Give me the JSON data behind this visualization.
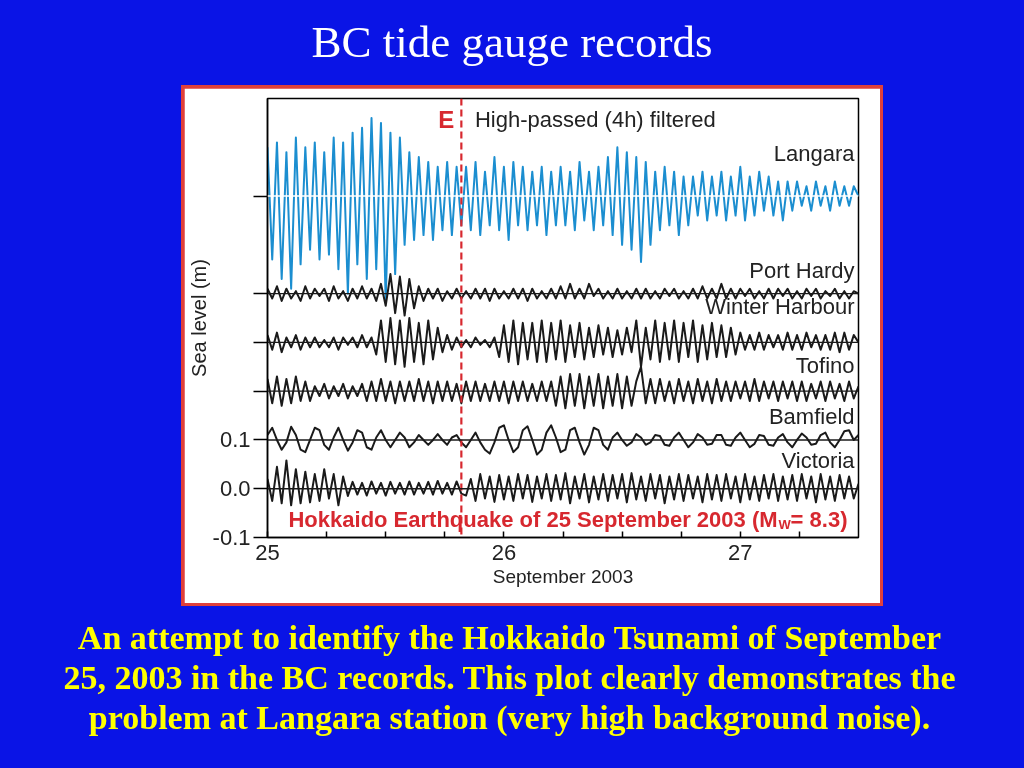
{
  "chart_data": {
    "type": "line",
    "title": "BC tide gauge records",
    "xlabel": "September 2003",
    "ylabel": "Sea level (m)",
    "annotations": [
      "High-passed (4h) filtered",
      "Hokkaido Earthquake of 25 September 2003 (M$_{W}$= 8.3)",
      "An attempt to identify the Hokkaido Tsunami of September 25, 2003 in the BC records. This plot clearly demonstrates the problem at Langara station (very high background noise)."
    ],
    "xlim": [
      25,
      27.5
    ],
    "xticks": [
      25,
      {
        "value": 25.25,
        "label": null
      },
      {
        "value": 25.5,
        "label": null
      },
      {
        "value": 25.75,
        "label": null
      },
      26,
      {
        "value": 26.25,
        "label": null
      },
      {
        "value": 26.5,
        "label": null
      },
      {
        "value": 26.75,
        "label": null
      },
      27,
      {
        "value": 27.25,
        "label": null
      }
    ],
    "ylim": [
      -0.1,
      0.8
    ],
    "yticks": [
      -0.1,
      {
        "value": 0,
        "label": "0.0"
      },
      0.1,
      {
        "value": 0.2,
        "label": null
      },
      {
        "value": 0.3,
        "label": null
      },
      {
        "value": 0.4,
        "label": null
      },
      {
        "value": 0.6,
        "label": null
      }
    ],
    "x": [
      25,
      25.02,
      25.04,
      25.06,
      25.08,
      25.1,
      25.12,
      25.14,
      25.16,
      25.18,
      25.2,
      25.22,
      25.24,
      25.26,
      25.28,
      25.3,
      25.32,
      25.34,
      25.36,
      25.38,
      25.4,
      25.42,
      25.44,
      25.46,
      25.48,
      25.5,
      25.52,
      25.54,
      25.56,
      25.58,
      25.6,
      25.62,
      25.64,
      25.66,
      25.68,
      25.7,
      25.72,
      25.74,
      25.76,
      25.78,
      25.8,
      25.82,
      25.84,
      25.86,
      25.88,
      25.9,
      25.92,
      25.94,
      25.96,
      25.98,
      26,
      26.02,
      26.04,
      26.06,
      26.08,
      26.1,
      26.12,
      26.14,
      26.16,
      26.18,
      26.2,
      26.22,
      26.24,
      26.26,
      26.28,
      26.3,
      26.32,
      26.34,
      26.36,
      26.38,
      26.4,
      26.42,
      26.44,
      26.46,
      26.48,
      26.5,
      26.52,
      26.54,
      26.56,
      26.58,
      26.6,
      26.62,
      26.64,
      26.66,
      26.68,
      26.7,
      26.72,
      26.74,
      26.76,
      26.78,
      26.8,
      26.82,
      26.84,
      26.86,
      26.88,
      26.9,
      26.92,
      26.94,
      26.96,
      26.98,
      27,
      27.02,
      27.04,
      27.06,
      27.08,
      27.1,
      27.12,
      27.14,
      27.16,
      27.18,
      27.2,
      27.22,
      27.24,
      27.26,
      27.28,
      27.3,
      27.32,
      27.34,
      27.36,
      27.38,
      27.4,
      27.42,
      27.44,
      27.46,
      27.48,
      27.5
    ],
    "series": [
      {
        "name": "Langara",
        "color": "#1b8ed0",
        "values": [
          0.7,
          0.47,
          0.71,
          0.43,
          0.69,
          0.41,
          0.72,
          0.46,
          0.7,
          0.49,
          0.71,
          0.47,
          0.69,
          0.48,
          0.72,
          0.45,
          0.71,
          0.4,
          0.73,
          0.46,
          0.74,
          0.43,
          0.76,
          0.45,
          0.75,
          0.385,
          0.73,
          0.44,
          0.72,
          0.5,
          0.69,
          0.51,
          0.68,
          0.52,
          0.67,
          0.51,
          0.66,
          0.53,
          0.67,
          0.52,
          0.66,
          0.54,
          0.66,
          0.53,
          0.67,
          0.52,
          0.65,
          0.54,
          0.68,
          0.53,
          0.66,
          0.51,
          0.67,
          0.54,
          0.66,
          0.53,
          0.65,
          0.54,
          0.66,
          0.52,
          0.65,
          0.54,
          0.66,
          0.54,
          0.65,
          0.53,
          0.67,
          0.55,
          0.65,
          0.53,
          0.66,
          0.54,
          0.68,
          0.52,
          0.7,
          0.5,
          0.69,
          0.49,
          0.68,
          0.465,
          0.67,
          0.5,
          0.65,
          0.53,
          0.66,
          0.54,
          0.65,
          0.52,
          0.64,
          0.54,
          0.64,
          0.56,
          0.65,
          0.55,
          0.64,
          0.56,
          0.65,
          0.55,
          0.64,
          0.56,
          0.66,
          0.55,
          0.64,
          0.56,
          0.65,
          0.57,
          0.64,
          0.56,
          0.63,
          0.55,
          0.63,
          0.57,
          0.63,
          0.58,
          0.62,
          0.57,
          0.63,
          0.58,
          0.62,
          0.57,
          0.63,
          0.58,
          0.62,
          0.58,
          0.62,
          0.6
        ]
      },
      {
        "name": "Port Hardy",
        "color": "#1a1a1a",
        "values": [
          0.41,
          0.39,
          0.415,
          0.385,
          0.41,
          0.39,
          0.405,
          0.385,
          0.415,
          0.39,
          0.41,
          0.395,
          0.41,
          0.385,
          0.415,
          0.39,
          0.405,
          0.385,
          0.41,
          0.39,
          0.415,
          0.39,
          0.41,
          0.385,
          0.42,
          0.375,
          0.44,
          0.36,
          0.435,
          0.355,
          0.43,
          0.37,
          0.415,
          0.385,
          0.41,
          0.39,
          0.41,
          0.385,
          0.405,
          0.39,
          0.41,
          0.39,
          0.405,
          0.39,
          0.41,
          0.39,
          0.41,
          0.385,
          0.41,
          0.39,
          0.405,
          0.39,
          0.41,
          0.39,
          0.41,
          0.385,
          0.41,
          0.39,
          0.405,
          0.39,
          0.41,
          0.39,
          0.415,
          0.39,
          0.42,
          0.39,
          0.41,
          0.39,
          0.42,
          0.395,
          0.41,
          0.39,
          0.405,
          0.39,
          0.41,
          0.39,
          0.405,
          0.39,
          0.41,
          0.39,
          0.41,
          0.39,
          0.405,
          0.39,
          0.41,
          0.395,
          0.41,
          0.39,
          0.405,
          0.39,
          0.41,
          0.39,
          0.415,
          0.39,
          0.41,
          0.39,
          0.42,
          0.39,
          0.41,
          0.39,
          0.41,
          0.395,
          0.41,
          0.39,
          0.405,
          0.39,
          0.41,
          0.39,
          0.41,
          0.395,
          0.41,
          0.39,
          0.405,
          0.39,
          0.41,
          0.395,
          0.41,
          0.39,
          0.405,
          0.395,
          0.41,
          0.39,
          0.405,
          0.39,
          0.405,
          0.4
        ]
      },
      {
        "name": "Winter Harbour",
        "color": "#1a1a1a",
        "values": [
          0.315,
          0.285,
          0.32,
          0.28,
          0.31,
          0.29,
          0.315,
          0.285,
          0.31,
          0.29,
          0.31,
          0.29,
          0.305,
          0.29,
          0.31,
          0.285,
          0.31,
          0.295,
          0.31,
          0.29,
          0.315,
          0.29,
          0.31,
          0.275,
          0.345,
          0.26,
          0.35,
          0.255,
          0.345,
          0.25,
          0.35,
          0.26,
          0.34,
          0.255,
          0.345,
          0.265,
          0.33,
          0.28,
          0.315,
          0.285,
          0.31,
          0.29,
          0.305,
          0.29,
          0.31,
          0.295,
          0.305,
          0.29,
          0.31,
          0.27,
          0.335,
          0.26,
          0.345,
          0.255,
          0.34,
          0.265,
          0.34,
          0.26,
          0.345,
          0.26,
          0.34,
          0.265,
          0.345,
          0.26,
          0.335,
          0.27,
          0.34,
          0.265,
          0.33,
          0.27,
          0.335,
          0.275,
          0.33,
          0.27,
          0.325,
          0.275,
          0.33,
          0.28,
          0.345,
          0.25,
          0.33,
          0.265,
          0.345,
          0.26,
          0.34,
          0.265,
          0.345,
          0.26,
          0.34,
          0.27,
          0.345,
          0.26,
          0.335,
          0.265,
          0.34,
          0.27,
          0.335,
          0.27,
          0.33,
          0.275,
          0.32,
          0.285,
          0.315,
          0.285,
          0.32,
          0.285,
          0.315,
          0.29,
          0.315,
          0.285,
          0.32,
          0.285,
          0.315,
          0.285,
          0.32,
          0.29,
          0.315,
          0.285,
          0.315,
          0.285,
          0.32,
          0.28,
          0.32,
          0.285,
          0.315,
          0.3
        ]
      },
      {
        "name": "Tofino",
        "color": "#1a1a1a",
        "values": [
          0.225,
          0.175,
          0.23,
          0.17,
          0.225,
          0.175,
          0.23,
          0.18,
          0.22,
          0.18,
          0.21,
          0.19,
          0.215,
          0.185,
          0.21,
          0.19,
          0.215,
          0.185,
          0.21,
          0.19,
          0.215,
          0.18,
          0.22,
          0.18,
          0.225,
          0.18,
          0.22,
          0.175,
          0.22,
          0.18,
          0.22,
          0.18,
          0.225,
          0.18,
          0.22,
          0.175,
          0.22,
          0.18,
          0.22,
          0.18,
          0.215,
          0.175,
          0.22,
          0.18,
          0.22,
          0.18,
          0.215,
          0.18,
          0.22,
          0.18,
          0.22,
          0.175,
          0.22,
          0.18,
          0.22,
          0.18,
          0.215,
          0.18,
          0.22,
          0.18,
          0.22,
          0.17,
          0.23,
          0.165,
          0.235,
          0.17,
          0.235,
          0.165,
          0.23,
          0.17,
          0.235,
          0.165,
          0.23,
          0.17,
          0.235,
          0.165,
          0.23,
          0.17,
          0.22,
          0.25,
          0.175,
          0.225,
          0.175,
          0.225,
          0.18,
          0.22,
          0.175,
          0.225,
          0.18,
          0.22,
          0.175,
          0.225,
          0.18,
          0.22,
          0.175,
          0.225,
          0.18,
          0.22,
          0.18,
          0.22,
          0.185,
          0.22,
          0.18,
          0.225,
          0.18,
          0.22,
          0.185,
          0.22,
          0.18,
          0.22,
          0.185,
          0.22,
          0.18,
          0.22,
          0.18,
          0.215,
          0.185,
          0.22,
          0.18,
          0.22,
          0.185,
          0.215,
          0.18,
          0.22,
          0.185,
          0.21
        ]
      },
      {
        "name": "Bamfield",
        "color": "#1a1a1a",
        "values": [
          0.11,
          0.125,
          0.1,
          0.08,
          0.095,
          0.127,
          0.11,
          0.08,
          0.075,
          0.1,
          0.125,
          0.12,
          0.09,
          0.08,
          0.105,
          0.125,
          0.1,
          0.078,
          0.095,
          0.12,
          0.115,
          0.085,
          0.08,
          0.105,
          0.12,
          0.1,
          0.085,
          0.1,
          0.115,
          0.105,
          0.085,
          0.095,
          0.11,
          0.1,
          0.09,
          0.1,
          0.112,
          0.1,
          0.09,
          0.105,
          0.11,
          0.095,
          0.085,
          0.1,
          0.115,
          0.095,
          0.08,
          0.072,
          0.095,
          0.125,
          0.13,
          0.1,
          0.075,
          0.085,
          0.12,
          0.128,
          0.1,
          0.07,
          0.08,
          0.115,
          0.13,
          0.105,
          0.075,
          0.08,
          0.12,
          0.125,
          0.095,
          0.07,
          0.09,
          0.125,
          0.12,
          0.09,
          0.08,
          0.105,
          0.115,
          0.1,
          0.088,
          0.095,
          0.112,
          0.105,
          0.09,
          0.095,
          0.11,
          0.108,
          0.09,
          0.088,
          0.105,
          0.115,
          0.1,
          0.085,
          0.095,
          0.112,
          0.105,
          0.09,
          0.092,
          0.11,
          0.11,
          0.09,
          0.088,
          0.105,
          0.115,
          0.1,
          0.085,
          0.092,
          0.11,
          0.108,
          0.09,
          0.088,
          0.105,
          0.112,
          0.095,
          0.085,
          0.1,
          0.113,
          0.105,
          0.09,
          0.092,
          0.11,
          0.115,
          0.095,
          0.085,
          0.1,
          0.118,
          0.12,
          0.1,
          0.11
        ]
      },
      {
        "name": "Victoria",
        "color": "#1a1a1a",
        "values": [
          0.02,
          -0.025,
          0.045,
          -0.03,
          0.058,
          -0.034,
          0.04,
          -0.03,
          0.035,
          -0.028,
          0.03,
          -0.025,
          0.04,
          -0.02,
          0.03,
          -0.034,
          0.025,
          -0.015,
          0.014,
          -0.012,
          0.012,
          -0.014,
          0.015,
          -0.01,
          0.012,
          -0.014,
          0.014,
          -0.01,
          0.012,
          -0.012,
          0.015,
          -0.012,
          0.012,
          -0.01,
          0.014,
          -0.012,
          0.016,
          -0.01,
          0.012,
          -0.012,
          0.015,
          -0.01,
          -0.014,
          0.02,
          -0.025,
          0.03,
          -0.02,
          0.025,
          -0.027,
          0.028,
          -0.022,
          0.025,
          -0.025,
          0.03,
          -0.02,
          0.028,
          -0.027,
          0.025,
          -0.02,
          0.03,
          -0.025,
          0.028,
          -0.022,
          0.032,
          -0.03,
          0.025,
          -0.02,
          0.03,
          -0.028,
          0.025,
          -0.022,
          0.03,
          -0.025,
          0.028,
          -0.02,
          0.03,
          -0.028,
          0.032,
          -0.022,
          0.025,
          -0.025,
          0.03,
          -0.02,
          0.028,
          -0.03,
          0.025,
          -0.022,
          0.03,
          -0.025,
          0.028,
          -0.02,
          0.025,
          -0.028,
          0.03,
          -0.022,
          0.028,
          -0.025,
          0.03,
          -0.02,
          0.025,
          -0.028,
          0.03,
          -0.022,
          0.025,
          -0.025,
          0.028,
          -0.02,
          0.03,
          -0.025,
          0.025,
          -0.022,
          0.028,
          -0.025,
          0.03,
          -0.02,
          0.025,
          -0.028,
          0.03,
          -0.022,
          0.025,
          -0.025,
          0.028,
          -0.02,
          0.025,
          -0.02,
          0.01
        ]
      }
    ],
    "ref_lines": [
      {
        "axis": "x",
        "value": 25.82,
        "label": "E",
        "color": "#d7282f",
        "line_style": "dashed"
      },
      {
        "axis": "y",
        "value": 0.6,
        "color": "#ffffff"
      },
      {
        "axis": "y",
        "value": 0.4,
        "color": "#1a1a1a"
      },
      {
        "axis": "y",
        "value": 0.3,
        "color": "#1a1a1a"
      },
      {
        "axis": "y",
        "value": 0.2,
        "color": "#1a1a1a"
      },
      {
        "axis": "y",
        "value": 0.1,
        "color": "#1a1a1a"
      },
      {
        "axis": "y",
        "value": 0,
        "color": "#1a1a1a"
      }
    ]
  }
}
